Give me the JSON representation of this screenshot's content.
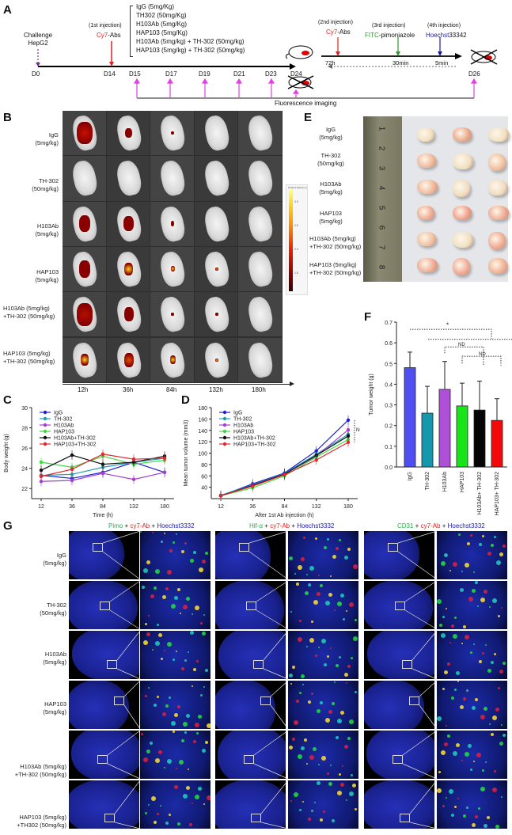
{
  "panels": {
    "A": {
      "letter": "A",
      "challenge": [
        "Challenge",
        "HepG2"
      ],
      "first_injection": {
        "label": "(1st injection)",
        "agent_red": "Cy7",
        "agent_rest": "-Abs"
      },
      "groups": [
        "IgG (5mg/Kg)",
        "TH302 (50mg/Kg)",
        "H103Ab (5mg/Kg)",
        "HAP103 (5mg/Kg)",
        "H103Ab (5mg/kg) + TH-302 (50mg/kg)",
        "HAP103 (5mg/kg) + TH-302 (50mg/kg)"
      ],
      "days_main": [
        "D0",
        "D14",
        "D15",
        "D17",
        "D19",
        "D21",
        "D23",
        "D24",
        "D26"
      ],
      "second_injection": {
        "label": "(2nd injection)",
        "agent_red": "Cy7",
        "agent_rest": "-Abs"
      },
      "third_injection": {
        "label": "(3rd injection)",
        "agent_green": "FITC",
        "agent_rest": "-pimoniazole"
      },
      "fourth_injection": {
        "label": "(4th injection)",
        "agent_blue": "Hoechst",
        "agent_rest": "33342"
      },
      "times": [
        "72h",
        "30min",
        "5min"
      ],
      "imaging_label": "Fluorescence imaging"
    },
    "B": {
      "letter": "B",
      "rows": [
        [
          "IgG",
          "(5mg/kg)"
        ],
        [
          "TH-302",
          "(50mg/kg)"
        ],
        [
          "H103Ab",
          "(5mg/kg)"
        ],
        [
          "HAP103",
          "(5mg/kg)"
        ],
        [
          "H103Ab (5mg/kg)",
          "+TH-302 (50mg/kg)"
        ],
        [
          "HAP103 (5mg/kg)",
          "+TH-302 (50mg/kg)"
        ]
      ],
      "timepoints": [
        "12h",
        "36h",
        "84h",
        "132h",
        "180h"
      ],
      "scale": {
        "title": "Radiant Efficiency",
        "ticks": [
          "3.0",
          "2.5",
          "2.0",
          "1.5",
          "1.0"
        ],
        "unit": "x10^8"
      }
    },
    "E": {
      "letter": "E",
      "rows": [
        [
          "IgG",
          "(5mg/kg)"
        ],
        [
          "TH-302",
          "(50mg/kg)"
        ],
        [
          "H103Ab",
          "(5mg/kg)"
        ],
        [
          "HAP103",
          "(5mg/kg)"
        ],
        [
          "H103Ab (5mg/kg)",
          "+TH-302 (50mg/kg)"
        ],
        [
          "HAP103 (5mg/kg)",
          "+TH-302 (50mg/kg)"
        ]
      ],
      "ruler_marks": [
        "1",
        "2",
        "3",
        "4",
        "5",
        "6",
        "7",
        "8"
      ]
    },
    "G": {
      "letter": "G",
      "columns": [
        {
          "marker": "Pimo",
          "marker_color": "#22b14c",
          "plus1": " + ",
          "red": "cy7-Ab",
          "plus2": " + ",
          "blue": "Hoechst3332"
        },
        {
          "marker": "Hif-α",
          "marker_color": "#22b14c",
          "plus1": " + ",
          "red": "cy7-Ab",
          "plus2": " + ",
          "blue": "Hoechst3332"
        },
        {
          "marker": "CD31",
          "marker_color": "#22b14c",
          "plus1": " + ",
          "red": "cy7-Ab",
          "plus2": " + ",
          "blue": "Hoechst3332"
        }
      ],
      "rows": [
        [
          "IgG",
          "(5mg/kg)"
        ],
        [
          "TH-302",
          "(50mg/kg)"
        ],
        [
          "H103Ab",
          "(5mg/kg)"
        ],
        [
          "HAP103",
          "(5mg/kg)"
        ],
        [
          "H103Ab (5mg/kg)",
          "+TH-302 (50mg/kg)"
        ],
        [
          "HAP103 (5mg/kg)",
          "+TH302 (50mg/kg)"
        ]
      ]
    }
  },
  "chart_data": [
    {
      "id": "C",
      "type": "line",
      "title": "",
      "xlabel": "Time (h)",
      "ylabel": "Body weight (g)",
      "categories": [
        "12",
        "36",
        "84",
        "132",
        "180"
      ],
      "ylim": [
        21,
        30
      ],
      "yticks": [
        22,
        24,
        26,
        28,
        30
      ],
      "legend_position": "upper-left",
      "series": [
        {
          "name": "IgG",
          "color": "#1f1fd6",
          "marker": "circle",
          "values": [
            23.3,
            23.0,
            23.6,
            24.6,
            23.6
          ]
        },
        {
          "name": "TH-302",
          "color": "#1a9fb0",
          "marker": "square",
          "values": [
            23.3,
            23.4,
            24.1,
            24.6,
            25.0
          ]
        },
        {
          "name": "H103Ab",
          "color": "#a23fd0",
          "marker": "triangle-up",
          "values": [
            22.7,
            22.8,
            23.5,
            22.9,
            23.6
          ]
        },
        {
          "name": "HAP103",
          "color": "#3ed93e",
          "marker": "triangle-down",
          "values": [
            24.6,
            24.1,
            25.2,
            24.4,
            24.8
          ]
        },
        {
          "name": "H103Ab+TH-302",
          "color": "#111111",
          "marker": "diamond",
          "values": [
            23.8,
            25.3,
            24.4,
            24.6,
            25.2
          ]
        },
        {
          "name": "HAP103+TH-302",
          "color": "#e8232b",
          "marker": "circle",
          "values": [
            23.2,
            23.9,
            25.4,
            24.9,
            25.0
          ]
        }
      ]
    },
    {
      "id": "D",
      "type": "line",
      "title": "",
      "xlabel": "After 1st Ab injection (h)",
      "ylabel": "Mean tumor volume (mm3)",
      "categories": [
        "12",
        "36",
        "84",
        "132",
        "180"
      ],
      "ylim": [
        20,
        180
      ],
      "yticks": [
        40,
        60,
        80,
        100,
        120,
        140,
        160,
        180
      ],
      "legend_position": "upper-left",
      "annotation": "ND",
      "series": [
        {
          "name": "IgG",
          "color": "#1f1fd6",
          "marker": "circle",
          "values": [
            25,
            46,
            65,
            104,
            158
          ]
        },
        {
          "name": "TH-302",
          "color": "#1a9fb0",
          "marker": "square",
          "values": [
            26,
            44,
            64,
            98,
            133
          ]
        },
        {
          "name": "H103Ab",
          "color": "#a23fd0",
          "marker": "triangle-up",
          "values": [
            25,
            43,
            63,
            95,
            141
          ]
        },
        {
          "name": "HAP103",
          "color": "#3ed93e",
          "marker": "triangle-down",
          "values": [
            25,
            39,
            60,
            93,
            124
          ]
        },
        {
          "name": "H103Ab+TH-302",
          "color": "#111111",
          "marker": "diamond",
          "values": [
            25,
            43,
            63,
            96,
            130
          ]
        },
        {
          "name": "HAP103+TH-302",
          "color": "#e8232b",
          "marker": "circle",
          "values": [
            25,
            42,
            62,
            88,
            119
          ]
        }
      ]
    },
    {
      "id": "F",
      "type": "bar",
      "title": "",
      "xlabel": "",
      "ylabel": "Tumor weight (g)",
      "categories": [
        "IgG",
        "TH-302",
        "H103Ab",
        "HAP103",
        "H103Ab+ TH-302",
        "HAP103+ TH-302"
      ],
      "values": [
        0.48,
        0.26,
        0.375,
        0.295,
        0.275,
        0.225
      ],
      "errors": [
        0.075,
        0.13,
        0.135,
        0.11,
        0.14,
        0.105
      ],
      "colors": [
        "#4e4ef2",
        "#1597ad",
        "#b04fd8",
        "#18e418",
        "#050505",
        "#f20a0a"
      ],
      "ylim": [
        0,
        0.7
      ],
      "yticks": [
        "0.0",
        "0.1",
        "0.2",
        "0.3",
        "0.4",
        "0.5",
        "0.6",
        "0.7"
      ],
      "annotations": [
        "*",
        "ND",
        "ND"
      ]
    }
  ]
}
